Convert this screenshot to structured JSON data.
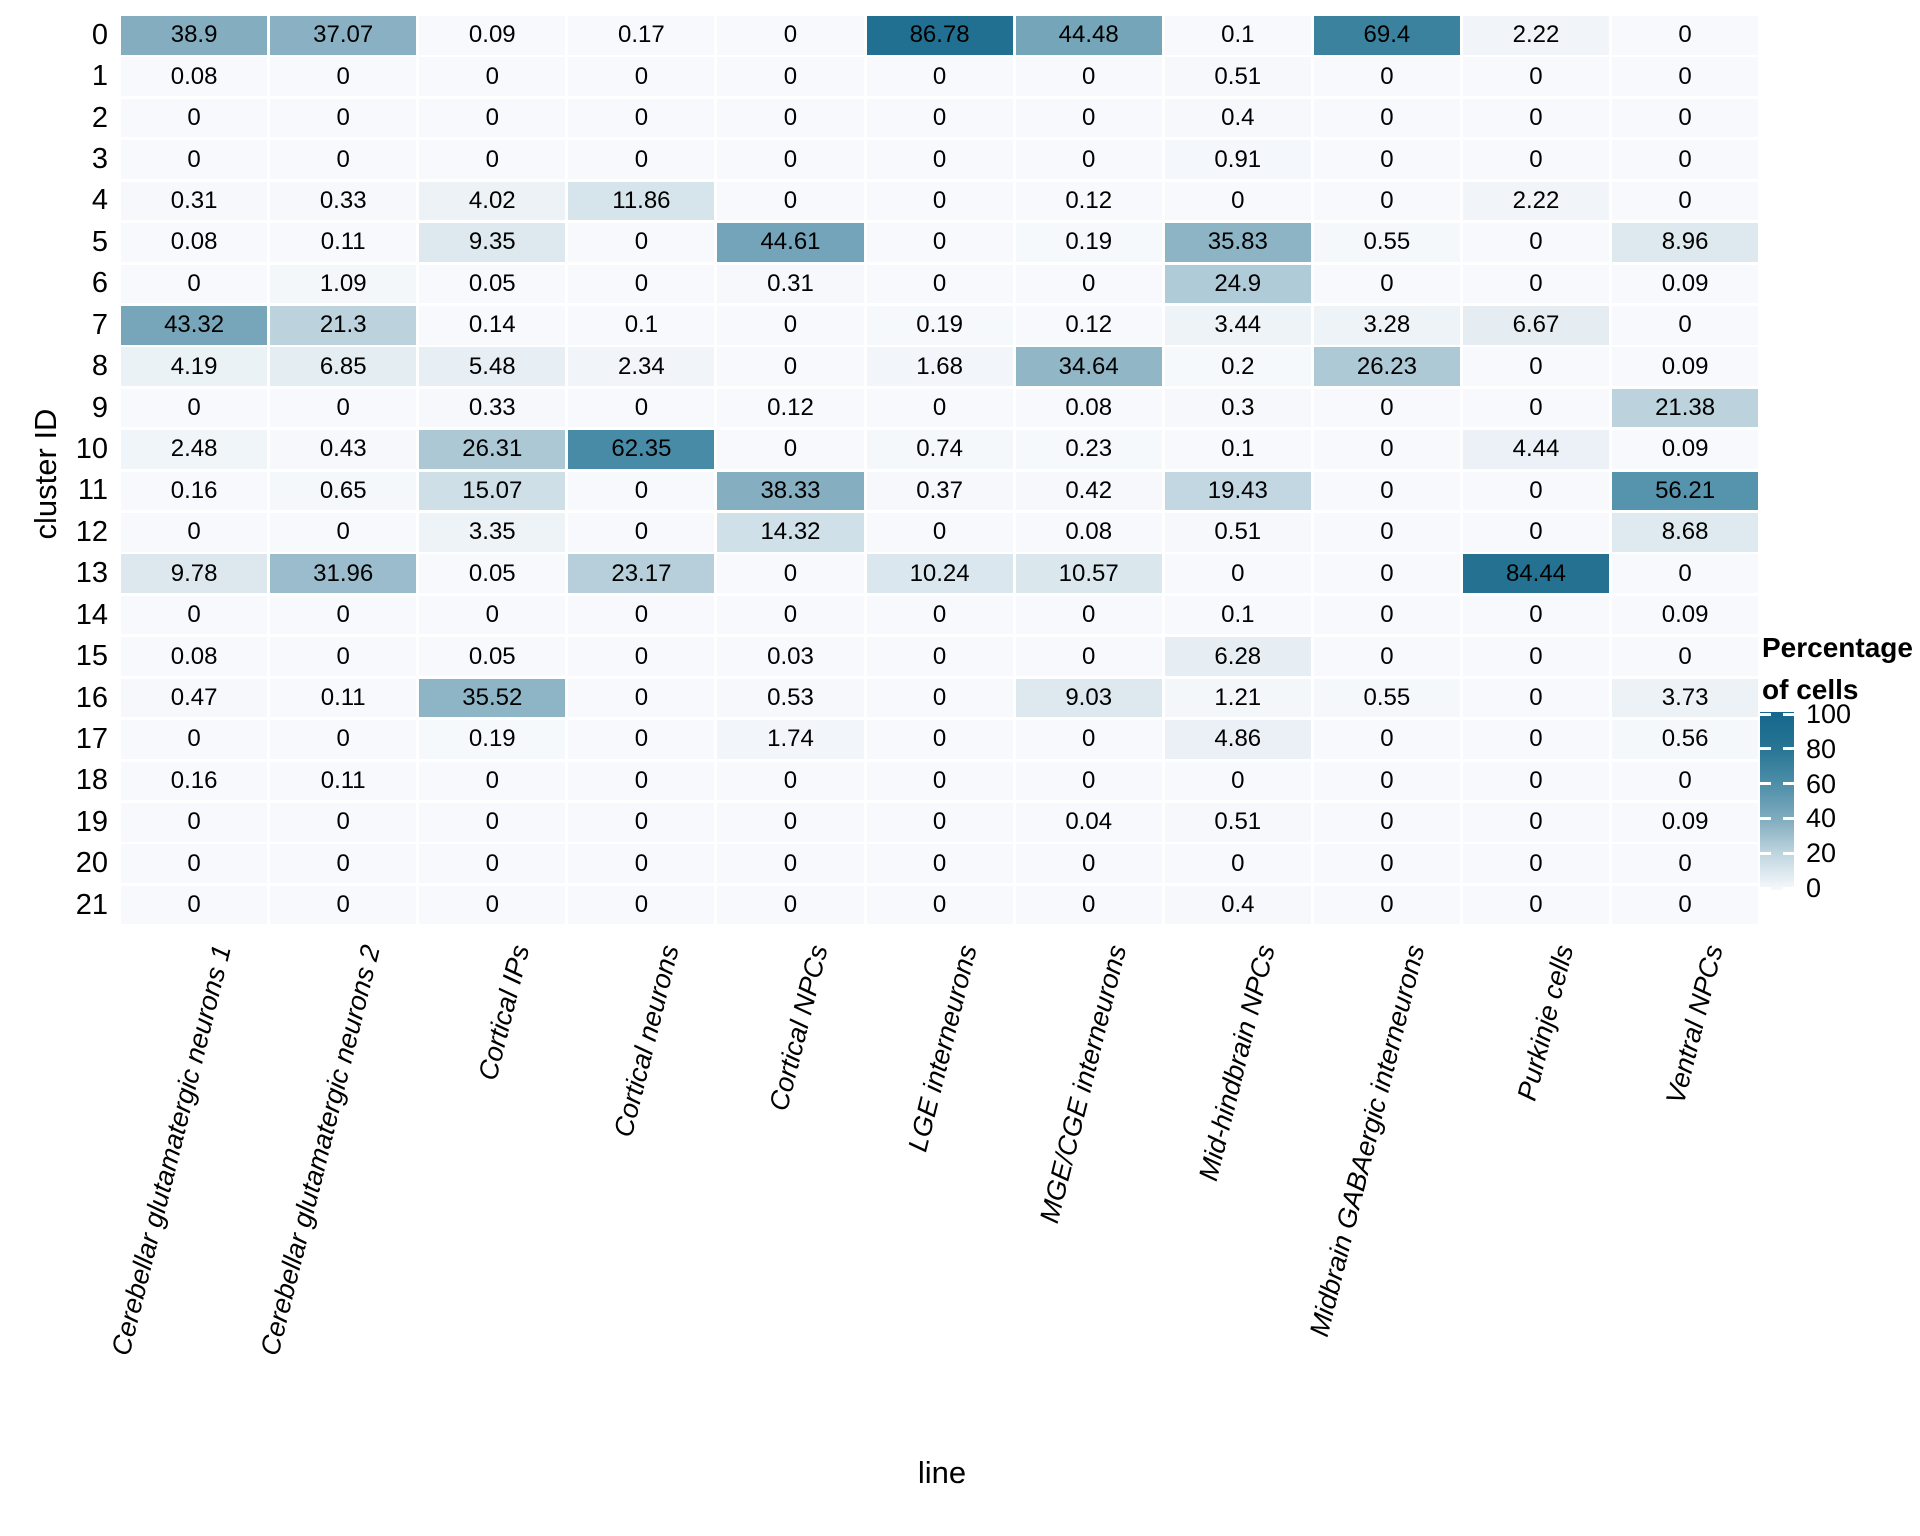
{
  "chart_data": {
    "type": "heatmap",
    "xlabel": "line",
    "ylabel": "cluster ID",
    "x_categories": [
      "Cerebellar glutamatergic neurons 1",
      "Cerebellar glutamatergic neurons 2",
      "Cortical IPs",
      "Cortical neurons",
      "Cortical NPCs",
      "LGE interneurons",
      "MGE/CGE interneurons",
      "Mid-hindbrain NPCs",
      "Midbrain GABAergic interneurons",
      "Purkinje cells",
      "Ventral NPCs"
    ],
    "y_categories": [
      "0",
      "1",
      "2",
      "3",
      "4",
      "5",
      "6",
      "7",
      "8",
      "9",
      "10",
      "11",
      "12",
      "13",
      "14",
      "15",
      "16",
      "17",
      "18",
      "19",
      "20",
      "21"
    ],
    "values": [
      [
        "38.9",
        "37.07",
        "0.09",
        "0.17",
        "0",
        "86.78",
        "44.48",
        "0.1",
        "69.4",
        "2.22",
        "0"
      ],
      [
        "0.08",
        "0",
        "0",
        "0",
        "0",
        "0",
        "0",
        "0.51",
        "0",
        "0",
        "0"
      ],
      [
        "0",
        "0",
        "0",
        "0",
        "0",
        "0",
        "0",
        "0.4",
        "0",
        "0",
        "0"
      ],
      [
        "0",
        "0",
        "0",
        "0",
        "0",
        "0",
        "0",
        "0.91",
        "0",
        "0",
        "0"
      ],
      [
        "0.31",
        "0.33",
        "4.02",
        "11.86",
        "0",
        "0",
        "0.12",
        "0",
        "0",
        "2.22",
        "0"
      ],
      [
        "0.08",
        "0.11",
        "9.35",
        "0",
        "44.61",
        "0",
        "0.19",
        "35.83",
        "0.55",
        "0",
        "8.96"
      ],
      [
        "0",
        "1.09",
        "0.05",
        "0",
        "0.31",
        "0",
        "0",
        "24.9",
        "0",
        "0",
        "0.09"
      ],
      [
        "43.32",
        "21.3",
        "0.14",
        "0.1",
        "0",
        "0.19",
        "0.12",
        "3.44",
        "3.28",
        "6.67",
        "0"
      ],
      [
        "4.19",
        "6.85",
        "5.48",
        "2.34",
        "0",
        "1.68",
        "34.64",
        "0.2",
        "26.23",
        "0",
        "0.09"
      ],
      [
        "0",
        "0",
        "0.33",
        "0",
        "0.12",
        "0",
        "0.08",
        "0.3",
        "0",
        "0",
        "21.38"
      ],
      [
        "2.48",
        "0.43",
        "26.31",
        "62.35",
        "0",
        "0.74",
        "0.23",
        "0.1",
        "0",
        "4.44",
        "0.09"
      ],
      [
        "0.16",
        "0.65",
        "15.07",
        "0",
        "38.33",
        "0.37",
        "0.42",
        "19.43",
        "0",
        "0",
        "56.21"
      ],
      [
        "0",
        "0",
        "3.35",
        "0",
        "14.32",
        "0",
        "0.08",
        "0.51",
        "0",
        "0",
        "8.68"
      ],
      [
        "9.78",
        "31.96",
        "0.05",
        "23.17",
        "0",
        "10.24",
        "10.57",
        "0",
        "0",
        "84.44",
        "0"
      ],
      [
        "0",
        "0",
        "0",
        "0",
        "0",
        "0",
        "0",
        "0.1",
        "0",
        "0",
        "0.09"
      ],
      [
        "0.08",
        "0",
        "0.05",
        "0",
        "0.03",
        "0",
        "0",
        "6.28",
        "0",
        "0",
        "0"
      ],
      [
        "0.47",
        "0.11",
        "35.52",
        "0",
        "0.53",
        "0",
        "9.03",
        "1.21",
        "0.55",
        "0",
        "3.73"
      ],
      [
        "0",
        "0",
        "0.19",
        "0",
        "1.74",
        "0",
        "0",
        "4.86",
        "0",
        "0",
        "0.56"
      ],
      [
        "0.16",
        "0.11",
        "0",
        "0",
        "0",
        "0",
        "0",
        "0",
        "0",
        "0",
        "0"
      ],
      [
        "0",
        "0",
        "0",
        "0",
        "0",
        "0",
        "0.04",
        "0.51",
        "0",
        "0",
        "0.09"
      ],
      [
        "0",
        "0",
        "0",
        "0",
        "0",
        "0",
        "0",
        "0",
        "0",
        "0",
        "0"
      ],
      [
        "0",
        "0",
        "0",
        "0",
        "0",
        "0",
        "0",
        "0.4",
        "0",
        "0",
        "0"
      ]
    ],
    "legend": {
      "title_line1": "Percentage",
      "title_line2": "of cells",
      "ticks": [
        "100",
        "80",
        "60",
        "40",
        "20",
        "0"
      ],
      "min": 0,
      "max": 100,
      "position": "right"
    },
    "colors": {
      "scale_stops": [
        {
          "v": 0,
          "c": "#f7f9fc"
        },
        {
          "v": 20,
          "c": "#c0d6e0"
        },
        {
          "v": 40,
          "c": "#80abbe"
        },
        {
          "v": 60,
          "c": "#4c8ea8"
        },
        {
          "v": 80,
          "c": "#287493"
        },
        {
          "v": 100,
          "c": "#14678d"
        }
      ],
      "cell_text": "#000000",
      "background": "#ffffff",
      "gap": "#ffffff"
    },
    "layout_hints": {
      "grid": "white gaps between tiles",
      "x_tick_rotation_deg": 76,
      "legend_position": "right-middle"
    }
  }
}
